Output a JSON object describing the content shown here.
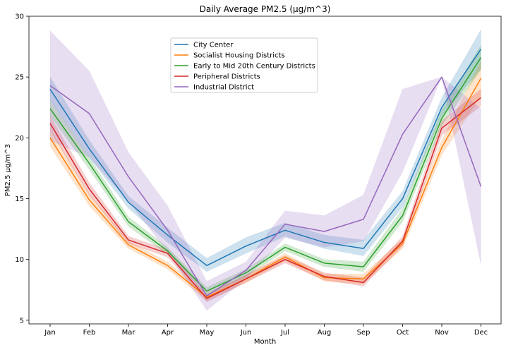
{
  "chart_data": {
    "type": "line",
    "title": "Daily Average PM2.5 (µg/m^3)",
    "xlabel": "Month",
    "ylabel": "PM2.5 µg/m^3",
    "categories": [
      "Jan",
      "Feb",
      "Mar",
      "Apr",
      "May",
      "Jun",
      "Jul",
      "Aug",
      "Sep",
      "Oct",
      "Nov",
      "Dec"
    ],
    "ylim": [
      4.7,
      30
    ],
    "yticks": [
      5,
      10,
      15,
      20,
      25,
      30
    ],
    "grid": false,
    "legend_position": "top-center",
    "series": [
      {
        "name": "City Center",
        "color": "#1f77b4",
        "values": [
          24.0,
          19.1,
          14.7,
          12.0,
          9.5,
          11.1,
          12.4,
          11.4,
          10.9,
          15.0,
          22.5,
          27.3
        ],
        "lower": [
          23.1,
          18.4,
          14.2,
          11.4,
          9.0,
          10.5,
          11.9,
          10.9,
          10.3,
          14.3,
          21.8,
          25.7
        ],
        "upper": [
          25.0,
          19.8,
          15.2,
          12.6,
          10.1,
          11.8,
          13.0,
          12.0,
          11.6,
          15.6,
          23.3,
          28.9
        ]
      },
      {
        "name": "Socialist Housing Districts",
        "color": "#ff7f0e",
        "values": [
          20.0,
          14.9,
          11.2,
          9.5,
          6.9,
          8.4,
          10.2,
          8.5,
          8.4,
          11.3,
          19.2,
          24.9
        ],
        "lower": [
          19.3,
          14.4,
          10.9,
          9.2,
          6.6,
          8.1,
          9.9,
          8.2,
          8.0,
          10.9,
          18.6,
          23.4
        ],
        "upper": [
          20.7,
          15.4,
          11.5,
          9.8,
          7.2,
          8.7,
          10.5,
          8.8,
          8.8,
          11.7,
          19.8,
          26.3
        ]
      },
      {
        "name": "Early to Mid 20th Century Districts",
        "color": "#2ca02c",
        "values": [
          22.4,
          17.9,
          13.1,
          10.7,
          7.4,
          8.9,
          11.0,
          9.7,
          9.4,
          13.6,
          21.6,
          26.6
        ],
        "lower": [
          21.8,
          17.4,
          12.7,
          10.4,
          7.1,
          8.6,
          10.7,
          9.4,
          9.0,
          13.1,
          21.0,
          25.6
        ],
        "upper": [
          23.1,
          18.4,
          13.5,
          11.0,
          7.7,
          9.2,
          11.3,
          10.0,
          9.8,
          14.2,
          22.3,
          27.6
        ]
      },
      {
        "name": "Peripheral Districts",
        "color": "#d62728",
        "values": [
          21.2,
          15.8,
          11.6,
          10.5,
          6.8,
          8.4,
          10.0,
          8.6,
          8.1,
          11.5,
          20.8,
          23.3
        ],
        "lower": [
          20.6,
          15.3,
          11.3,
          10.2,
          6.5,
          8.1,
          9.7,
          8.3,
          7.8,
          11.1,
          20.2,
          22.6
        ],
        "upper": [
          21.8,
          16.3,
          11.9,
          10.8,
          7.1,
          8.7,
          10.3,
          8.9,
          8.5,
          11.9,
          21.4,
          24.0
        ]
      },
      {
        "name": "Industrial District",
        "color": "#9467bd",
        "values": [
          24.3,
          22.0,
          16.8,
          12.4,
          7.0,
          9.1,
          12.9,
          12.3,
          13.3,
          20.3,
          25.0,
          16.0
        ],
        "lower": [
          19.8,
          18.4,
          14.8,
          10.6,
          5.8,
          8.4,
          11.8,
          11.0,
          11.5,
          17.2,
          25.0,
          9.6
        ],
        "upper": [
          28.8,
          25.5,
          18.8,
          14.4,
          8.2,
          9.8,
          14.0,
          13.6,
          15.3,
          24.0,
          25.0,
          22.4
        ]
      }
    ]
  }
}
